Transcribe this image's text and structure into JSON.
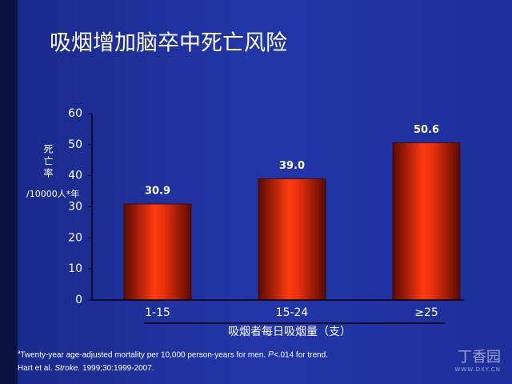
{
  "chart_data": {
    "type": "bar",
    "title": "吸烟增加脑卒中死亡风险",
    "y_label": "死亡率",
    "y_unit": "/10000人*年",
    "x_label": "吸烟者每日吸烟量（支）",
    "categories": [
      "1-15",
      "15-24",
      "≥25"
    ],
    "values": [
      30.9,
      39.0,
      50.6
    ],
    "value_labels": [
      "30.9",
      "39.0",
      "50.6"
    ],
    "color": "#d8250a",
    "ylim": [
      0,
      60
    ],
    "yticks": [
      0,
      10,
      20,
      30,
      40,
      50,
      60
    ],
    "grid": false
  },
  "footnote": {
    "marker": "a",
    "text": "Twenty-year age-adjusted mortality per 10,000 person-years for men.",
    "p_symbol": "P",
    "p_text": "<.014 for trend.",
    "ref_authors": "Hart et al.",
    "ref_journal": "Stroke.",
    "ref_detail": "1999;30:1999-2007."
  },
  "watermark": {
    "name": "丁香园",
    "url": "WWW.DXY.CN"
  }
}
